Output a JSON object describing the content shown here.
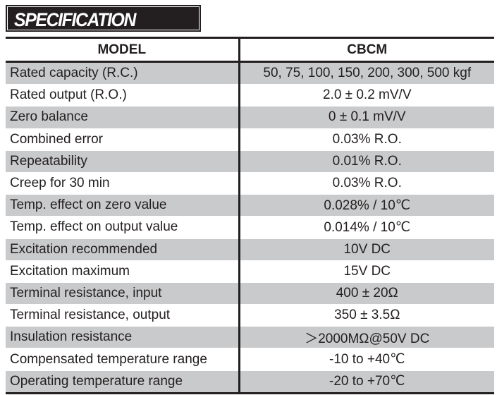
{
  "banner": {
    "title": "SPECIFICATION"
  },
  "table": {
    "headers": [
      "MODEL",
      "CBCM"
    ],
    "rows": [
      {
        "param": "Rated capacity (R.C.)",
        "value": "50, 75, 100, 150, 200, 300, 500 kgf"
      },
      {
        "param": "Rated output (R.O.)",
        "value": "2.0 ± 0.2 mV/V"
      },
      {
        "param": "Zero balance",
        "value": "0 ± 0.1 mV/V"
      },
      {
        "param": "Combined error",
        "value": "0.03% R.O."
      },
      {
        "param": "Repeatability",
        "value": "0.01% R.O."
      },
      {
        "param": "Creep for 30 min",
        "value": "0.03% R.O."
      },
      {
        "param": "Temp. effect on zero value",
        "value": "0.028% / 10℃"
      },
      {
        "param": "Temp. effect on output value",
        "value": "0.014% / 10℃"
      },
      {
        "param": "Excitation recommended",
        "value": "10V DC"
      },
      {
        "param": "Excitation maximum",
        "value": "15V DC"
      },
      {
        "param": "Terminal resistance, input",
        "value": "400 ± 20Ω"
      },
      {
        "param": "Terminal resistance, output",
        "value": "350 ± 3.5Ω"
      },
      {
        "param": "Insulation resistance",
        "value": "＞2000MΩ@50V DC"
      },
      {
        "param": "Compensated temperature range",
        "value": "-10 to +40℃"
      },
      {
        "param": "Operating temperature range",
        "value": "-20 to +70℃"
      }
    ]
  },
  "colors": {
    "shade": "#c9cacb",
    "ink": "#231f20",
    "banner_bg": "#231f20",
    "banner_text": "#ffffff"
  }
}
